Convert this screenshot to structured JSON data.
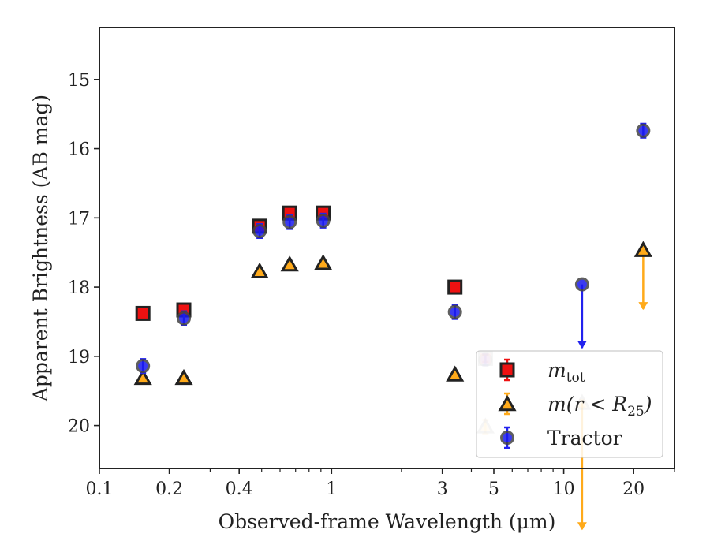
{
  "chart_data": {
    "type": "scatter",
    "title": "",
    "xlabel": "Observed-frame Wavelength (μm)",
    "ylabel": "Apparent Brightness (AB mag)",
    "xscale": "log",
    "xlim": [
      0.1,
      30
    ],
    "ylim": [
      20.62,
      14.25
    ],
    "y_inverted": true,
    "grid": false,
    "legend_position": "lower-right",
    "x_ticks": [
      {
        "value": 0.1,
        "label": "0.1"
      },
      {
        "value": 0.2,
        "label": "0.2"
      },
      {
        "value": 0.4,
        "label": "0.4"
      },
      {
        "value": 1,
        "label": "1"
      },
      {
        "value": 3,
        "label": "3"
      },
      {
        "value": 5,
        "label": "5"
      },
      {
        "value": 10,
        "label": "10"
      },
      {
        "value": 20,
        "label": "20"
      }
    ],
    "y_ticks": [
      {
        "value": 15,
        "label": "15"
      },
      {
        "value": 16,
        "label": "16"
      },
      {
        "value": 17,
        "label": "17"
      },
      {
        "value": 18,
        "label": "18"
      },
      {
        "value": 19,
        "label": "19"
      },
      {
        "value": 20,
        "label": "20"
      }
    ],
    "series": [
      {
        "name": "m_tot",
        "legend_label": {
          "main": "m",
          "sub": "tot"
        },
        "marker": "square",
        "color": "#ee1111",
        "edge_color": "#222222",
        "errorbar_color": "#ee1111",
        "points": [
          {
            "x": 0.154,
            "y": 18.38,
            "err": 0.05
          },
          {
            "x": 0.231,
            "y": 18.33,
            "err": 0.05
          },
          {
            "x": 0.49,
            "y": 17.12,
            "err": 0.05
          },
          {
            "x": 0.66,
            "y": 16.93,
            "err": 0.05
          },
          {
            "x": 0.92,
            "y": 16.93,
            "err": 0.05
          },
          {
            "x": 3.4,
            "y": 18.0,
            "err": 0.05
          },
          {
            "x": 4.6,
            "y": 19.03,
            "err": 0.05,
            "faded": true
          }
        ]
      },
      {
        "name": "m(r < R25)",
        "legend_label": {
          "main": "m(r < R",
          "sub": "25",
          "tail": ")"
        },
        "marker": "triangle",
        "color": "#ffaa1a",
        "edge_color": "#222222",
        "errorbar_color": "#ffaa1a",
        "points": [
          {
            "x": 0.154,
            "y": 19.32,
            "err": 0.03
          },
          {
            "x": 0.231,
            "y": 19.32,
            "err": 0.03
          },
          {
            "x": 0.49,
            "y": 17.78,
            "err": 0.03
          },
          {
            "x": 0.66,
            "y": 17.68,
            "err": 0.03
          },
          {
            "x": 0.92,
            "y": 17.66,
            "err": 0.03
          },
          {
            "x": 3.4,
            "y": 19.27,
            "err": 0.03
          },
          {
            "x": 4.6,
            "y": 20.02,
            "err": 0.1,
            "faded": true
          },
          {
            "x": 12.0,
            "y": 19.68,
            "err": 0.05,
            "faded": true,
            "upper_limit": true,
            "limit_to": 21.5
          },
          {
            "x": 22.0,
            "y": 17.47,
            "err": 0.05,
            "upper_limit": true,
            "limit_to": 18.32
          }
        ]
      },
      {
        "name": "Tractor",
        "legend_label": {
          "main": "Tractor"
        },
        "marker": "circle",
        "color": "#1a1aee",
        "edge_color": "#444444",
        "errorbar_color": "#2222ee",
        "points": [
          {
            "x": 0.154,
            "y": 19.14,
            "err": 0.1
          },
          {
            "x": 0.231,
            "y": 18.45,
            "err": 0.1
          },
          {
            "x": 0.49,
            "y": 17.19,
            "err": 0.1
          },
          {
            "x": 0.66,
            "y": 17.06,
            "err": 0.1
          },
          {
            "x": 0.92,
            "y": 17.04,
            "err": 0.1
          },
          {
            "x": 3.4,
            "y": 18.36,
            "err": 0.1
          },
          {
            "x": 4.6,
            "y": 19.05,
            "err": 0.08,
            "faded": true
          },
          {
            "x": 12.0,
            "y": 17.96,
            "err": 0.0,
            "upper_limit": true,
            "limit_to": 18.88
          },
          {
            "x": 22.0,
            "y": 15.74,
            "err": 0.1
          }
        ]
      }
    ]
  }
}
